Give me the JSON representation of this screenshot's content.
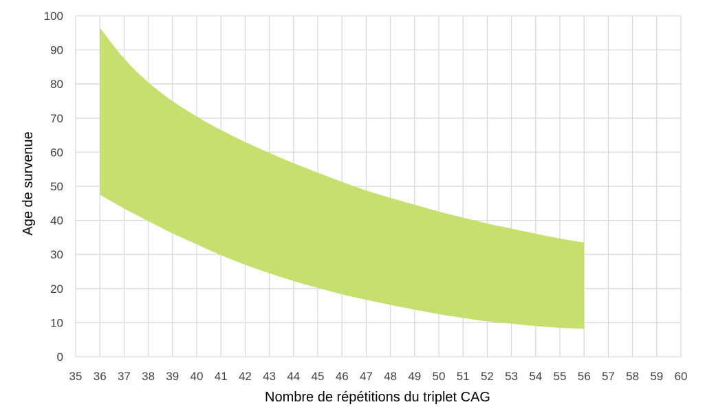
{
  "chart_data": {
    "type": "area",
    "xlabel": "Nombre de répétitions du triplet CAG",
    "ylabel": "Age de survenue",
    "xlim": [
      35,
      60
    ],
    "ylim": [
      0,
      100
    ],
    "x_ticks": [
      35,
      36,
      37,
      38,
      39,
      40,
      41,
      42,
      43,
      44,
      45,
      46,
      47,
      48,
      49,
      50,
      51,
      52,
      53,
      54,
      55,
      56,
      57,
      58,
      59,
      60
    ],
    "y_ticks": [
      0,
      10,
      20,
      30,
      40,
      50,
      60,
      70,
      80,
      90,
      100
    ],
    "grid": true,
    "series": [
      {
        "x": [
          36,
          37,
          38,
          39,
          40,
          41,
          42,
          43,
          44,
          45,
          46,
          47,
          48,
          49,
          50,
          51,
          52,
          53,
          54,
          55,
          56
        ],
        "upper": [
          96.5,
          87.5,
          80.5,
          75.0,
          70.5,
          66.5,
          63.0,
          59.8,
          56.8,
          54.0,
          51.3,
          48.8,
          46.6,
          44.6,
          42.6,
          40.8,
          39.1,
          37.6,
          36.1,
          34.7,
          33.5
        ],
        "lower": [
          47.5,
          43.5,
          39.8,
          36.2,
          33.0,
          29.8,
          27.0,
          24.5,
          22.2,
          20.2,
          18.3,
          16.7,
          15.2,
          13.8,
          12.5,
          11.4,
          10.4,
          9.7,
          9.0,
          8.5,
          8.2
        ]
      }
    ],
    "colors": {
      "band": "#c5e06f",
      "grid": "#d9d9d9",
      "axis_text": "#404040"
    }
  }
}
